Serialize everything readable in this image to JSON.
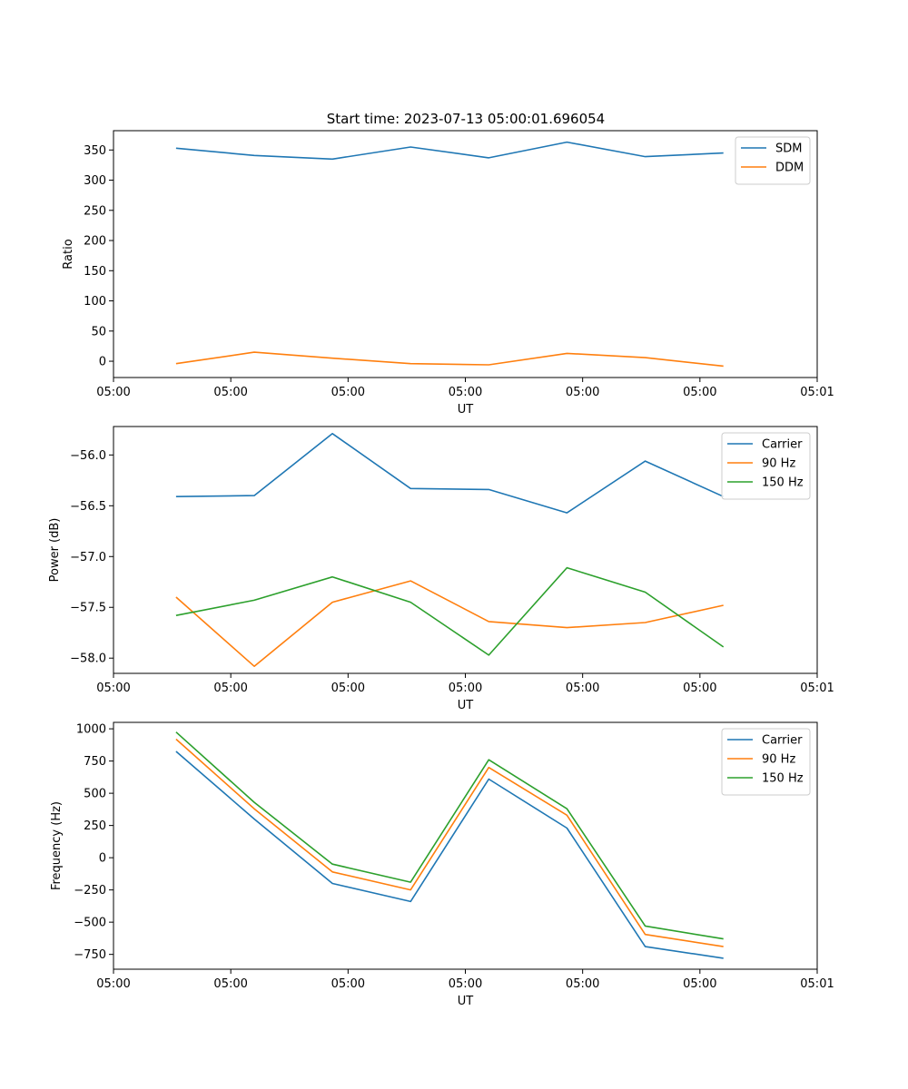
{
  "title": "Start time: 2023-07-13 05:00:01.696054",
  "colors": {
    "blue": "#1f77b4",
    "orange": "#ff7f0e",
    "green": "#2ca02c"
  },
  "chart_data": [
    {
      "type": "line",
      "xlabel": "UT",
      "ylabel": "Ratio",
      "x": [
        1,
        2,
        3,
        4,
        5,
        6,
        7,
        8
      ],
      "xlim": [
        0.2,
        9.2
      ],
      "xticks": [
        0.2,
        1.7,
        3.2,
        4.7,
        6.2,
        7.7,
        9.2
      ],
      "xtick_labels": [
        "05:00",
        "05:00",
        "05:00",
        "05:00",
        "05:00",
        "05:00",
        "05:01"
      ],
      "ylim": [
        -27,
        382
      ],
      "yticks": [
        0,
        50,
        100,
        150,
        200,
        250,
        300,
        350
      ],
      "ytick_labels": [
        "0",
        "50",
        "100",
        "150",
        "200",
        "250",
        "300",
        "350"
      ],
      "legend_position": "top-right",
      "series": [
        {
          "name": "SDM",
          "color": "#1f77b4",
          "values": [
            353,
            341,
            335,
            355,
            337,
            363,
            339,
            345
          ]
        },
        {
          "name": "DDM",
          "color": "#ff7f0e",
          "values": [
            -4,
            15,
            5,
            -4,
            -6,
            13,
            6,
            -8
          ]
        }
      ]
    },
    {
      "type": "line",
      "xlabel": "UT",
      "ylabel": "Power (dB)",
      "x": [
        1,
        2,
        3,
        4,
        5,
        6,
        7,
        8
      ],
      "xlim": [
        0.2,
        9.2
      ],
      "xticks": [
        0.2,
        1.7,
        3.2,
        4.7,
        6.2,
        7.7,
        9.2
      ],
      "xtick_labels": [
        "05:00",
        "05:00",
        "05:00",
        "05:00",
        "05:00",
        "05:00",
        "05:01"
      ],
      "ylim": [
        -58.15,
        -55.72
      ],
      "yticks": [
        -58.0,
        -57.5,
        -57.0,
        -56.5,
        -56.0
      ],
      "ytick_labels": [
        "−58.0",
        "−57.5",
        "−57.0",
        "−56.5",
        "−56.0"
      ],
      "legend_position": "top-right",
      "series": [
        {
          "name": "Carrier",
          "color": "#1f77b4",
          "values": [
            -56.41,
            -56.4,
            -55.79,
            -56.33,
            -56.34,
            -56.57,
            -56.06,
            -56.41
          ]
        },
        {
          "name": "90 Hz",
          "color": "#ff7f0e",
          "values": [
            -57.4,
            -58.08,
            -57.45,
            -57.24,
            -57.64,
            -57.7,
            -57.65,
            -57.48
          ]
        },
        {
          "name": "150 Hz",
          "color": "#2ca02c",
          "values": [
            -57.58,
            -57.43,
            -57.2,
            -57.45,
            -57.97,
            -57.11,
            -57.35,
            -57.89
          ]
        }
      ]
    },
    {
      "type": "line",
      "xlabel": "UT",
      "ylabel": "Frequency (Hz)",
      "x": [
        1,
        2,
        3,
        4,
        5,
        6,
        7,
        8
      ],
      "xlim": [
        0.2,
        9.2
      ],
      "xticks": [
        0.2,
        1.7,
        3.2,
        4.7,
        6.2,
        7.7,
        9.2
      ],
      "xtick_labels": [
        "05:00",
        "05:00",
        "05:00",
        "05:00",
        "05:00",
        "05:00",
        "05:01"
      ],
      "ylim": [
        -865,
        1050
      ],
      "yticks": [
        -750,
        -500,
        -250,
        0,
        250,
        500,
        750,
        1000
      ],
      "ytick_labels": [
        "−750",
        "−500",
        "−250",
        "0",
        "250",
        "500",
        "750",
        "1000"
      ],
      "legend_position": "top-right",
      "series": [
        {
          "name": "Carrier",
          "color": "#1f77b4",
          "values": [
            825,
            300,
            -200,
            -340,
            610,
            230,
            -690,
            -780
          ]
        },
        {
          "name": "90 Hz",
          "color": "#ff7f0e",
          "values": [
            920,
            380,
            -110,
            -250,
            700,
            330,
            -595,
            -690
          ]
        },
        {
          "name": "150 Hz",
          "color": "#2ca02c",
          "values": [
            975,
            430,
            -50,
            -190,
            760,
            380,
            -530,
            -630
          ]
        }
      ]
    }
  ]
}
